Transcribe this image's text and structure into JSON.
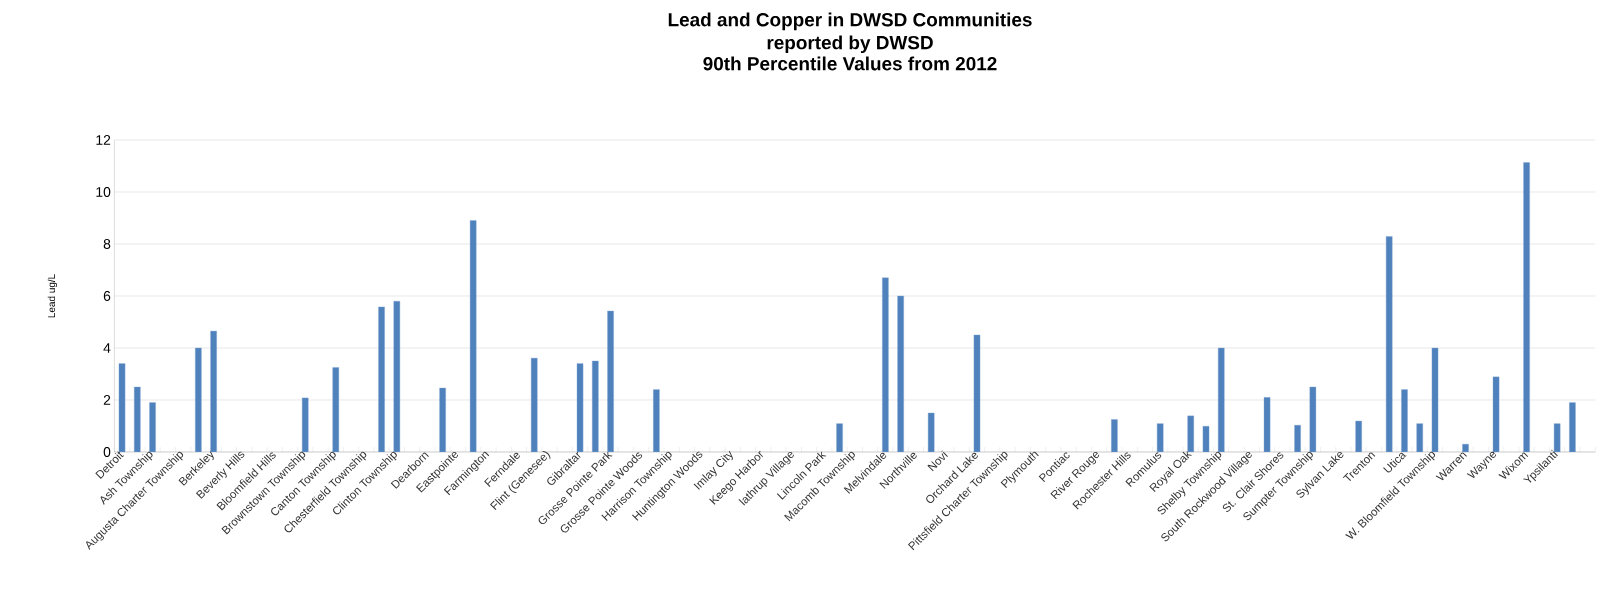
{
  "chart_data": {
    "type": "bar",
    "title": "Lead and Copper in DWSD Communities reported by DWSD",
    "subtitle": "90th Percentile Values from 2012",
    "ylabel": "Lead ug/L",
    "categories": [
      "Detroit",
      null,
      "Ash Township",
      null,
      "Augusta Charter Township",
      null,
      "Berkeley",
      null,
      "Beverly Hills",
      null,
      "Bloomfield Hills",
      null,
      "Brownstown Township",
      null,
      "Canton Township",
      null,
      "Chesterfield Township",
      null,
      "Clinton Township",
      null,
      "Dearborn",
      null,
      "Eastpointe",
      null,
      "Farmington",
      null,
      "Ferndale",
      null,
      "Flint (Genesee)",
      null,
      "Gibraltar",
      null,
      "Grosse Pointe Park",
      null,
      "Grosse Pointe Woods",
      null,
      "Harrison Township",
      null,
      "Huntington Woods",
      null,
      "Imlay City",
      null,
      "Keego Harbor",
      null,
      "lathrup Village",
      null,
      "Lincoln Park",
      null,
      "Macomb Township",
      null,
      "Melvindale",
      null,
      "Northville",
      null,
      "Novi",
      null,
      "Orchard Lake",
      null,
      "Pittsfield Charter Township",
      null,
      "Plymouth",
      null,
      "Pontiac",
      null,
      "River Rouge",
      null,
      "Rochester Hills",
      null,
      "Romulus",
      null,
      "Royal Oak",
      null,
      "Shelby Township",
      null,
      "South Rockwood Village",
      null,
      "St. Clair Shores",
      null,
      "Sumpter Township",
      null,
      "Sylvan Lake",
      null,
      "Trenton",
      null,
      "Utica",
      null,
      "W. Bloomfield Township",
      null,
      "Warren",
      null,
      "Wayne",
      null,
      "Wixom",
      null,
      "Ypsilanti",
      null,
      null
    ],
    "values": [
      3.4,
      2.5,
      1.9,
      null,
      null,
      4.0,
      4.65,
      null,
      null,
      null,
      null,
      null,
      2.08,
      null,
      3.25,
      null,
      null,
      5.58,
      5.8,
      null,
      null,
      2.46,
      null,
      8.9,
      null,
      null,
      null,
      3.61,
      null,
      null,
      3.4,
      3.5,
      5.42,
      null,
      null,
      2.4,
      null,
      null,
      null,
      null,
      null,
      null,
      null,
      null,
      null,
      null,
      null,
      1.09,
      null,
      null,
      6.7,
      6.0,
      null,
      1.5,
      null,
      null,
      4.5,
      null,
      null,
      null,
      null,
      null,
      null,
      null,
      null,
      1.25,
      null,
      null,
      1.09,
      null,
      1.39,
      0.99,
      4.0,
      null,
      null,
      2.1,
      null,
      1.03,
      2.5,
      null,
      null,
      1.19,
      null,
      8.29,
      2.4,
      1.09,
      4.0,
      null,
      0.3,
      null,
      2.89,
      null,
      11.13,
      null,
      1.09,
      1.9,
      null
    ],
    "color": "#4f81bd",
    "ylim": [
      0,
      12
    ],
    "yticks": [
      0,
      2,
      4,
      6,
      8,
      10,
      12
    ],
    "grid": "y"
  }
}
